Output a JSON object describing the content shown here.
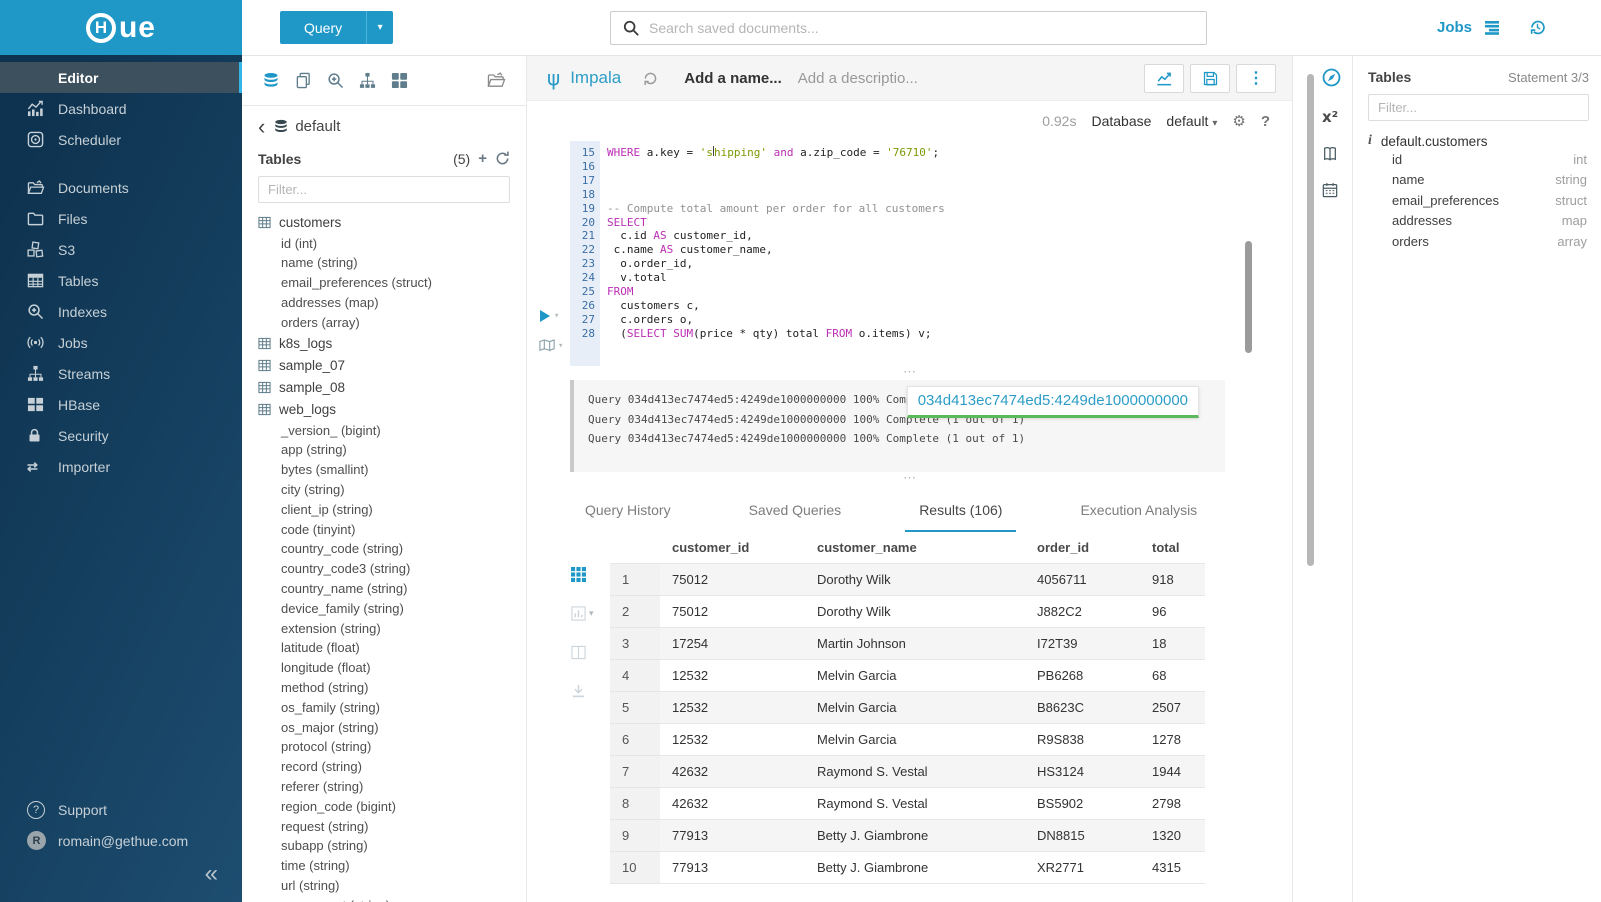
{
  "brand": {
    "logo_h": "H",
    "logo_rest": "ue"
  },
  "topbar": {
    "query_label": "Query",
    "search_placeholder": "Search saved documents...",
    "jobs_label": "Jobs"
  },
  "icons": {
    "kebab": "⋮",
    "caret-down": "▾",
    "collapse": "«",
    "back": "‹",
    "plus": "+",
    "help": "?",
    "gear": "⚙",
    "importer": "⇄",
    "code": "</>",
    "ellipsis": "⋯",
    "info": "i",
    "superscript": "x²"
  },
  "sidebar": {
    "items": [
      {
        "label": "Editor",
        "icon": "code",
        "active": true
      },
      {
        "label": "Dashboard",
        "icon": "dashboard"
      },
      {
        "label": "Scheduler",
        "icon": "scheduler"
      },
      {
        "label": "Documents",
        "icon": "documents",
        "gap": true
      },
      {
        "label": "Files",
        "icon": "files"
      },
      {
        "label": "S3",
        "icon": "s3"
      },
      {
        "label": "Tables",
        "icon": "tables"
      },
      {
        "label": "Indexes",
        "icon": "indexes"
      },
      {
        "label": "Jobs",
        "icon": "jobs"
      },
      {
        "label": "Streams",
        "icon": "streams"
      },
      {
        "label": "HBase",
        "icon": "hbase"
      },
      {
        "label": "Security",
        "icon": "security"
      },
      {
        "label": "Importer",
        "icon": "importer"
      }
    ],
    "support_label": "Support",
    "user_email": "romain@gethue.com",
    "user_initial": "R"
  },
  "assist": {
    "database_name": "default",
    "tables_label": "Tables",
    "tables_count": "(5)",
    "filter_placeholder": "Filter...",
    "tree": [
      {
        "table": "customers",
        "columns": [
          "id (int)",
          "name (string)",
          "email_preferences (struct)",
          "addresses (map)",
          "orders (array)"
        ]
      },
      {
        "table": "k8s_logs",
        "columns": []
      },
      {
        "table": "sample_07",
        "columns": []
      },
      {
        "table": "sample_08",
        "columns": []
      },
      {
        "table": "web_logs",
        "columns": [
          "_version_ (bigint)",
          "app (string)",
          "bytes (smallint)",
          "city (string)",
          "client_ip (string)",
          "code (tinyint)",
          "country_code (string)",
          "country_code3 (string)",
          "country_name (string)",
          "device_family (string)",
          "extension (string)",
          "latitude (float)",
          "longitude (float)",
          "method (string)",
          "os_family (string)",
          "os_major (string)",
          "protocol (string)",
          "record (string)",
          "referer (string)",
          "region_code (bigint)",
          "request (string)",
          "subapp (string)",
          "time (string)",
          "url (string)",
          "user_agent (string)"
        ]
      }
    ]
  },
  "editor": {
    "engine": "Impala",
    "name_placeholder": "Add a name...",
    "description_placeholder": "Add a descriptio...",
    "duration": "0.92s",
    "database_label": "Database",
    "database_value": "default",
    "code": [
      {
        "n": "15",
        "parts": [
          [
            "kw",
            "WHERE"
          ],
          [
            "pl",
            " a.key = "
          ],
          [
            "str",
            "'s"
          ],
          [
            "cur",
            ""
          ],
          [
            "str",
            "hipping'"
          ],
          [
            "kw",
            " and"
          ],
          [
            "pl",
            " a.zip_code = "
          ],
          [
            "str",
            "'76710'"
          ],
          [
            "pl",
            ";"
          ]
        ]
      },
      {
        "n": "16",
        "parts": []
      },
      {
        "n": "17",
        "parts": []
      },
      {
        "n": "18",
        "parts": []
      },
      {
        "n": "19",
        "parts": [
          [
            "cm",
            "-- Compute total amount per order for all customers"
          ]
        ]
      },
      {
        "n": "20",
        "parts": [
          [
            "kw",
            "SELECT"
          ]
        ]
      },
      {
        "n": "21",
        "parts": [
          [
            "pl",
            "  c.id "
          ],
          [
            "kw",
            "AS"
          ],
          [
            "pl",
            " customer_id,"
          ]
        ]
      },
      {
        "n": "22",
        "parts": [
          [
            "pl",
            " c.name "
          ],
          [
            "kw",
            "AS"
          ],
          [
            "pl",
            " customer_name,"
          ]
        ]
      },
      {
        "n": "23",
        "parts": [
          [
            "pl",
            "  o.order_id,"
          ]
        ]
      },
      {
        "n": "24",
        "parts": [
          [
            "pl",
            "  v.total"
          ]
        ]
      },
      {
        "n": "25",
        "parts": [
          [
            "kw",
            "FROM"
          ]
        ]
      },
      {
        "n": "26",
        "parts": [
          [
            "pl",
            "  customers c,"
          ]
        ]
      },
      {
        "n": "27",
        "parts": [
          [
            "pl",
            "  c.orders o,"
          ]
        ]
      },
      {
        "n": "28",
        "parts": [
          [
            "pl",
            "  ("
          ],
          [
            "kw",
            "SELECT"
          ],
          [
            "pl",
            " "
          ],
          [
            "kw",
            "SUM"
          ],
          [
            "pl",
            "(price * qty) total "
          ],
          [
            "kw",
            "FROM"
          ],
          [
            "pl",
            " o.items) v;"
          ]
        ]
      }
    ],
    "log_lines": [
      "Query 034d413ec7474ed5:4249de1000000000 100% Complete (1 out of 1)",
      "Query 034d413ec7474ed5:4249de1000000000 100% Complete (1 out of 1)",
      "Query 034d413ec7474ed5:4249de1000000000 100% Complete (1 out of 1)"
    ],
    "log_overlay": "034d413ec7474ed5:4249de1000000000"
  },
  "tabs": [
    {
      "label": "Query History",
      "active": false
    },
    {
      "label": "Saved Queries",
      "active": false
    },
    {
      "label": "Results (106)",
      "active": true
    },
    {
      "label": "Execution Analysis",
      "active": false
    }
  ],
  "results": {
    "columns": [
      "customer_id",
      "customer_name",
      "order_id",
      "total"
    ],
    "rows": [
      [
        "1",
        "75012",
        "Dorothy Wilk",
        "4056711",
        "918"
      ],
      [
        "2",
        "75012",
        "Dorothy Wilk",
        "J882C2",
        "96"
      ],
      [
        "3",
        "17254",
        "Martin Johnson",
        "I72T39",
        "18"
      ],
      [
        "4",
        "12532",
        "Melvin Garcia",
        "PB6268",
        "68"
      ],
      [
        "5",
        "12532",
        "Melvin Garcia",
        "B8623C",
        "2507"
      ],
      [
        "6",
        "12532",
        "Melvin Garcia",
        "R9S838",
        "1278"
      ],
      [
        "7",
        "42632",
        "Raymond S. Vestal",
        "HS3124",
        "1944"
      ],
      [
        "8",
        "42632",
        "Raymond S. Vestal",
        "BS5902",
        "2798"
      ],
      [
        "9",
        "77913",
        "Betty J. Giambrone",
        "DN8815",
        "1320"
      ],
      [
        "10",
        "77913",
        "Betty J. Giambrone",
        "XR2771",
        "4315"
      ]
    ]
  },
  "right_panel": {
    "title": "Tables",
    "statement": "Statement 3/3",
    "filter_placeholder": "Filter...",
    "table_name": "default.customers",
    "columns": [
      {
        "name": "id",
        "type": "int"
      },
      {
        "name": "name",
        "type": "string"
      },
      {
        "name": "email_preferences",
        "type": "struct"
      },
      {
        "name": "addresses",
        "type": "map"
      },
      {
        "name": "orders",
        "type": "array"
      }
    ]
  },
  "colors": {
    "brand_blue": "#1f98c7",
    "sidebar_navy": "#12395a",
    "accent_cyan": "#33b5e5",
    "keyword_magenta": "#bb2eb4",
    "string_green": "#7a9a00",
    "comment_gray": "#919191",
    "overlay_green": "#5cb85c"
  }
}
